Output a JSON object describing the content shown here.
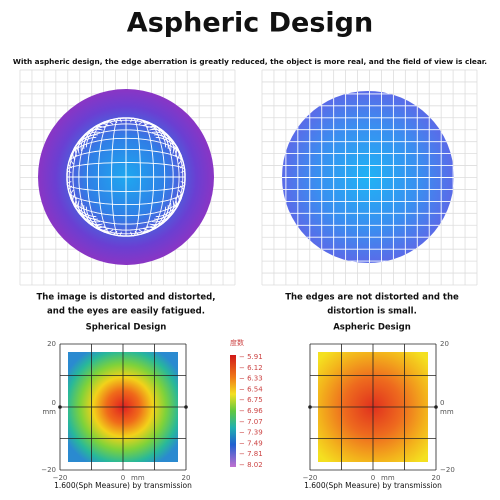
{
  "header": {
    "title": "Aspheric Design",
    "subtitle": "With aspheric design, the edge aberration is greatly reduced, the object is more real, and the field of view is clear."
  },
  "panels": [
    {
      "lines": [
        "The image is distorted and distorted,",
        "and the eyes are easily fatigued."
      ],
      "label": "Spherical Design"
    },
    {
      "lines": [
        "The edges are not distorted and the",
        "distortion is small."
      ],
      "label": "Aspheric Design"
    }
  ],
  "heatmaps": [
    {
      "y_labels": [
        "20",
        "0",
        "−20"
      ],
      "x_labels": [
        "−20",
        "0",
        "20"
      ],
      "unit": "mm",
      "caption": "1.600(Sph Measure) by transmission"
    },
    {
      "y_labels": [
        "20",
        "0",
        "−20"
      ],
      "x_labels": [
        "−20",
        "0",
        "20"
      ],
      "unit": "mm",
      "caption": "1.600(Sph Measure) by transmission"
    }
  ],
  "colorbar": {
    "title": "度数",
    "labels": [
      "− 5.91",
      "− 6.12",
      "− 6.33",
      "− 6.54",
      "− 6.75",
      "− 6.96",
      "− 7.07",
      "− 7.39",
      "− 7.49",
      "− 7.81",
      "− 8.02"
    ]
  }
}
